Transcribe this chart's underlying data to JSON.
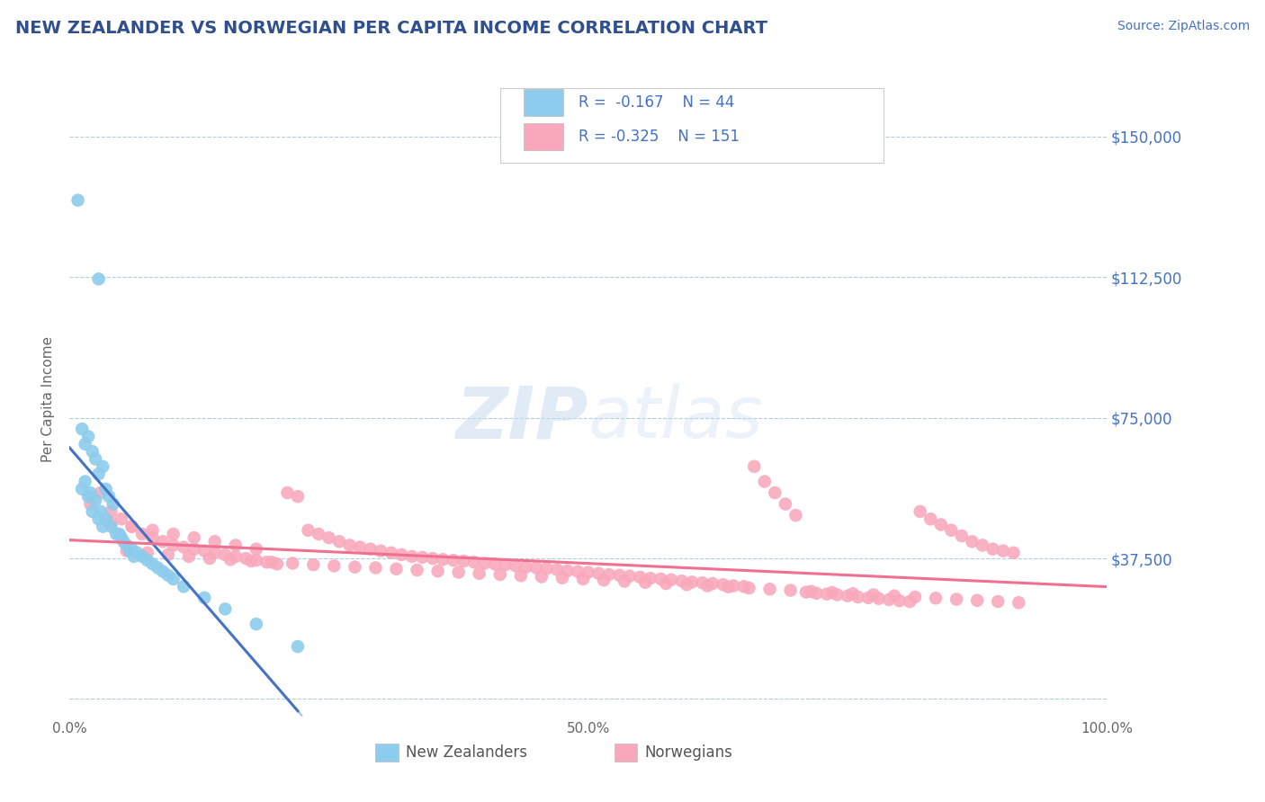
{
  "title": "NEW ZEALANDER VS NORWEGIAN PER CAPITA INCOME CORRELATION CHART",
  "source": "Source: ZipAtlas.com",
  "ylabel": "Per Capita Income",
  "xlim": [
    0.0,
    1.0
  ],
  "ylim": [
    -5000,
    165000
  ],
  "yticks": [
    0,
    37500,
    75000,
    112500,
    150000
  ],
  "ytick_labels": [
    "",
    "$37,500",
    "$75,000",
    "$112,500",
    "$150,000"
  ],
  "xticks": [
    0.0,
    0.25,
    0.5,
    0.75,
    1.0
  ],
  "xtick_labels": [
    "0.0%",
    "",
    "50.0%",
    "",
    "100.0%"
  ],
  "nz_color": "#8DCCEC",
  "no_color": "#F9A8BC",
  "nz_line_color": "#4472C4",
  "no_line_color": "#F07090",
  "title_color": "#2F4F8F",
  "ytick_color": "#4472C4",
  "background_color": "#FFFFFF",
  "grid_color": "#AECDE0",
  "watermark_color": "#C8DCF0",
  "legend_label_nz": "New Zealanders",
  "legend_label_no": "Norwegians",
  "nz_scatter_x": [
    0.008,
    0.028,
    0.012,
    0.015,
    0.018,
    0.022,
    0.025,
    0.028,
    0.032,
    0.035,
    0.038,
    0.042,
    0.012,
    0.018,
    0.022,
    0.028,
    0.032,
    0.015,
    0.02,
    0.025,
    0.03,
    0.035,
    0.04,
    0.045,
    0.05,
    0.055,
    0.06,
    0.065,
    0.07,
    0.075,
    0.08,
    0.085,
    0.09,
    0.095,
    0.1,
    0.11,
    0.13,
    0.15,
    0.18,
    0.22,
    0.048,
    0.052,
    0.058,
    0.062
  ],
  "nz_scatter_y": [
    133000,
    112000,
    72000,
    68000,
    70000,
    66000,
    64000,
    60000,
    62000,
    56000,
    54000,
    52000,
    56000,
    54000,
    50000,
    48000,
    46000,
    58000,
    55000,
    53000,
    50000,
    48000,
    46000,
    44000,
    43000,
    41000,
    40000,
    39000,
    38000,
    37000,
    36000,
    35000,
    34000,
    33000,
    32000,
    30000,
    27000,
    24000,
    20000,
    14000,
    44000,
    42000,
    39500,
    38000
  ],
  "no_scatter_x": [
    0.02,
    0.03,
    0.04,
    0.05,
    0.06,
    0.07,
    0.08,
    0.09,
    0.1,
    0.11,
    0.12,
    0.13,
    0.14,
    0.15,
    0.16,
    0.17,
    0.18,
    0.19,
    0.2,
    0.21,
    0.22,
    0.23,
    0.24,
    0.25,
    0.26,
    0.27,
    0.28,
    0.29,
    0.3,
    0.31,
    0.32,
    0.33,
    0.34,
    0.35,
    0.36,
    0.37,
    0.38,
    0.39,
    0.4,
    0.41,
    0.42,
    0.43,
    0.44,
    0.45,
    0.46,
    0.47,
    0.48,
    0.49,
    0.5,
    0.51,
    0.52,
    0.53,
    0.54,
    0.55,
    0.56,
    0.57,
    0.58,
    0.59,
    0.6,
    0.61,
    0.62,
    0.63,
    0.64,
    0.65,
    0.66,
    0.67,
    0.68,
    0.69,
    0.7,
    0.71,
    0.72,
    0.73,
    0.74,
    0.75,
    0.76,
    0.77,
    0.78,
    0.79,
    0.8,
    0.81,
    0.82,
    0.83,
    0.84,
    0.85,
    0.86,
    0.87,
    0.88,
    0.89,
    0.9,
    0.91,
    0.04,
    0.06,
    0.08,
    0.1,
    0.12,
    0.14,
    0.16,
    0.18,
    0.055,
    0.075,
    0.095,
    0.115,
    0.135,
    0.155,
    0.175,
    0.195,
    0.215,
    0.235,
    0.255,
    0.275,
    0.295,
    0.315,
    0.335,
    0.355,
    0.375,
    0.395,
    0.415,
    0.435,
    0.455,
    0.475,
    0.495,
    0.515,
    0.535,
    0.555,
    0.575,
    0.595,
    0.615,
    0.635,
    0.655,
    0.675,
    0.695,
    0.715,
    0.735,
    0.755,
    0.775,
    0.795,
    0.815,
    0.835,
    0.855,
    0.875,
    0.895,
    0.915
  ],
  "no_scatter_y": [
    52000,
    55000,
    50000,
    48000,
    46000,
    44000,
    43000,
    42000,
    41000,
    40500,
    40000,
    39500,
    39000,
    38500,
    38000,
    37500,
    37000,
    36500,
    36000,
    55000,
    54000,
    45000,
    44000,
    43000,
    42000,
    41000,
    40500,
    40000,
    39500,
    39000,
    38500,
    38000,
    37800,
    37500,
    37200,
    37000,
    36800,
    36500,
    36200,
    36000,
    35800,
    35500,
    35200,
    35000,
    34800,
    34500,
    34200,
    34000,
    33800,
    33500,
    33200,
    33000,
    32800,
    32500,
    32200,
    32000,
    31800,
    31500,
    31200,
    31000,
    30800,
    30500,
    30200,
    30000,
    62000,
    58000,
    55000,
    52000,
    49000,
    28500,
    28200,
    28000,
    27800,
    27500,
    27200,
    27000,
    26800,
    26500,
    26200,
    26000,
    50000,
    48000,
    46500,
    45000,
    43500,
    42000,
    41000,
    40000,
    39500,
    39000,
    47000,
    46000,
    45000,
    44000,
    43000,
    42000,
    41000,
    40000,
    39500,
    39000,
    38500,
    38000,
    37500,
    37200,
    36800,
    36500,
    36200,
    35800,
    35500,
    35200,
    35000,
    34700,
    34400,
    34100,
    33800,
    33500,
    33200,
    32900,
    32600,
    32300,
    32000,
    31700,
    31400,
    31100,
    30800,
    30500,
    30200,
    29900,
    29600,
    29300,
    29000,
    28700,
    28400,
    28100,
    27800,
    27500,
    27200,
    26900,
    26600,
    26300,
    26000,
    25700
  ]
}
